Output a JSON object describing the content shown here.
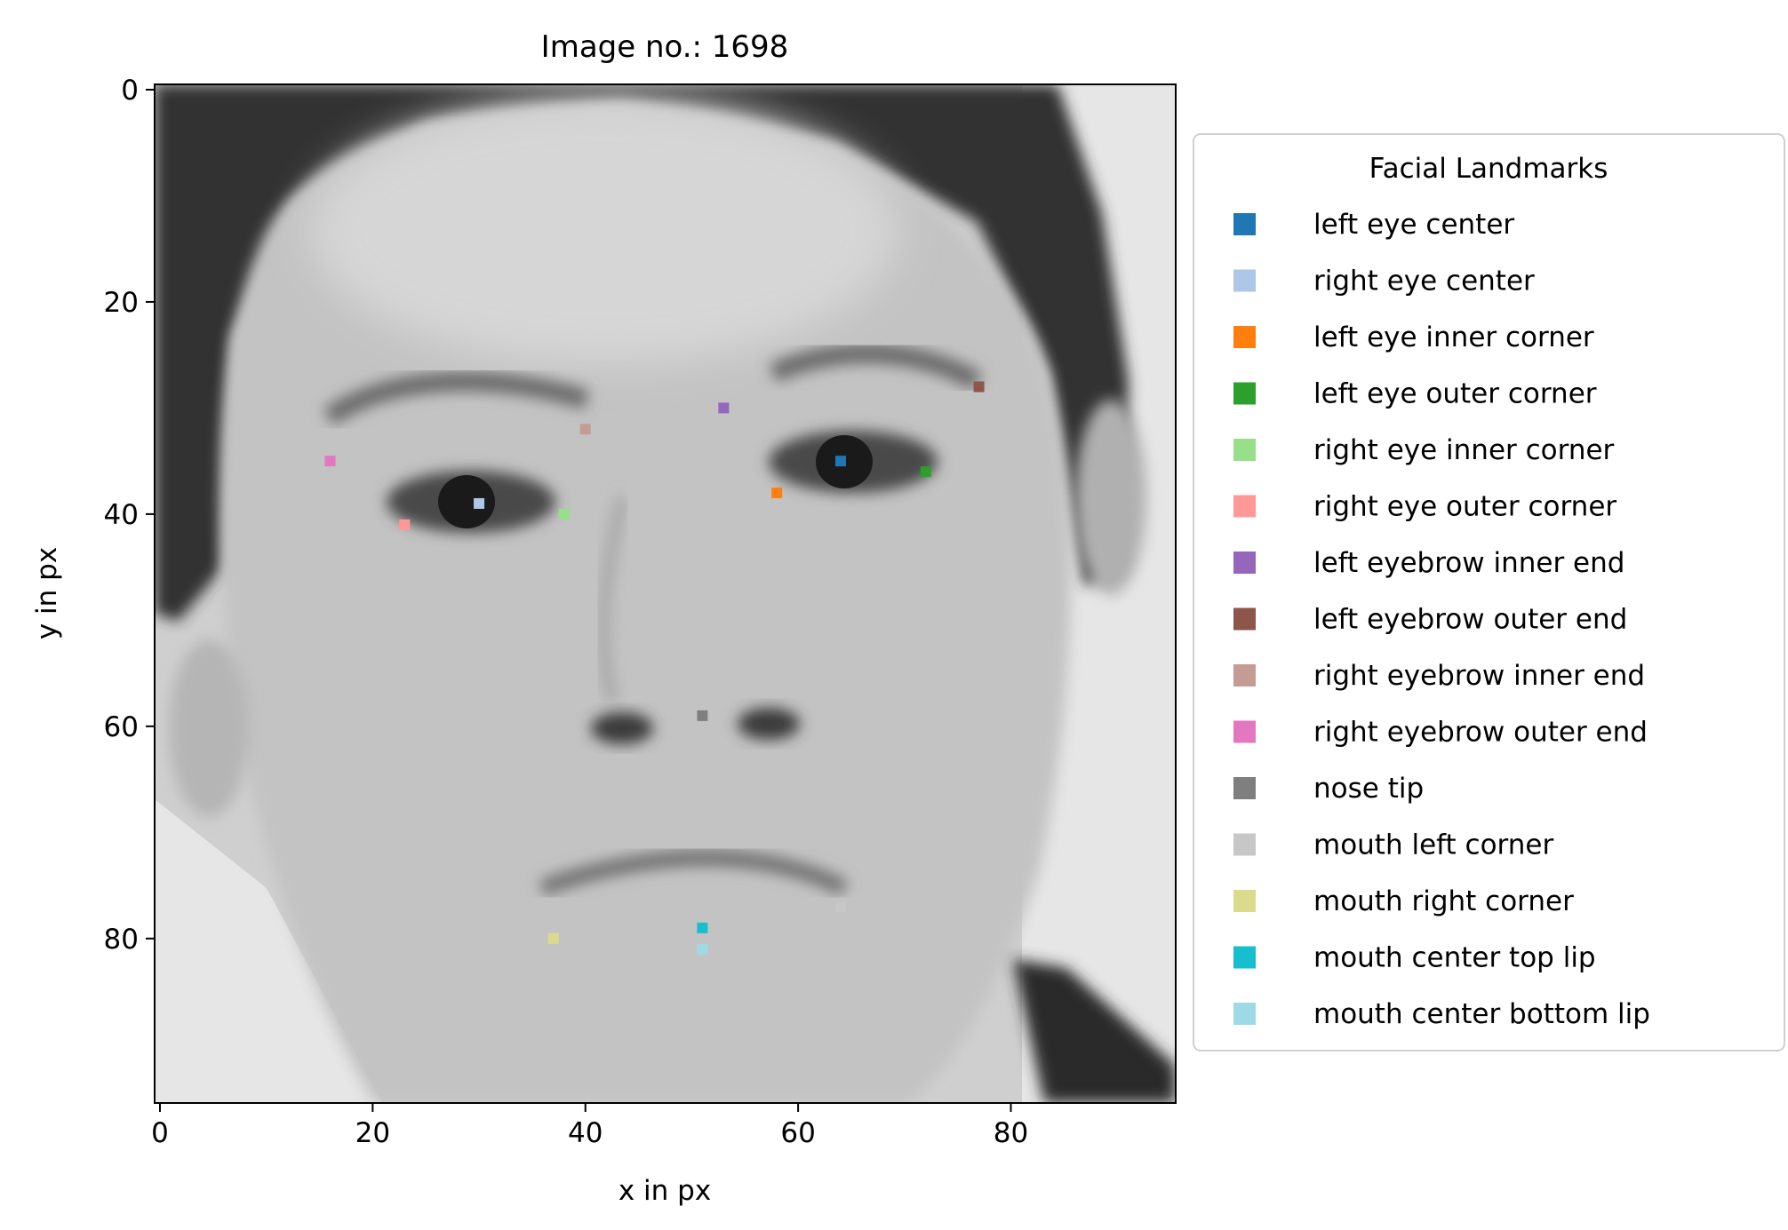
{
  "chart_data": {
    "type": "scatter",
    "title": "Image no.: 1698",
    "xlabel": "x in px",
    "ylabel": "y in px",
    "xlim": [
      -0.5,
      95.5
    ],
    "ylim": [
      95.5,
      -0.5
    ],
    "y_inverted": true,
    "background": "grayscale face photograph (96 x 96 px)",
    "xticks": [
      0,
      20,
      40,
      60,
      80
    ],
    "yticks": [
      0,
      20,
      40,
      60,
      80
    ],
    "xtick_labels": [
      "0",
      "20",
      "40",
      "60",
      "80"
    ],
    "ytick_labels": [
      "0",
      "20",
      "40",
      "60",
      "80"
    ],
    "grid": false,
    "legend": {
      "title": "Facial Landmarks",
      "placement": "outside-right"
    },
    "series": [
      {
        "name": "left eye center",
        "color": "#1f77b4",
        "x": 64,
        "y": 35
      },
      {
        "name": "right eye center",
        "color": "#aec7e8",
        "x": 30,
        "y": 39
      },
      {
        "name": "left eye inner corner",
        "color": "#ff7f0e",
        "x": 58,
        "y": 38
      },
      {
        "name": "left eye outer corner",
        "color": "#2ca02c",
        "x": 72,
        "y": 36
      },
      {
        "name": "right eye inner corner",
        "color": "#98df8a",
        "x": 38,
        "y": 40
      },
      {
        "name": "right eye outer corner",
        "color": "#ff9896",
        "x": 23,
        "y": 41
      },
      {
        "name": "left eyebrow inner end",
        "color": "#9467bd",
        "x": 53,
        "y": 30
      },
      {
        "name": "left eyebrow outer end",
        "color": "#8c564b",
        "x": 77,
        "y": 28
      },
      {
        "name": "right eyebrow inner end",
        "color": "#c49c94",
        "x": 40,
        "y": 32
      },
      {
        "name": "right eyebrow outer end",
        "color": "#e377c2",
        "x": 16,
        "y": 35
      },
      {
        "name": "nose tip",
        "color": "#7f7f7f",
        "x": 51,
        "y": 59
      },
      {
        "name": "mouth left corner",
        "color": "#c7c7c7",
        "x": 64,
        "y": 77
      },
      {
        "name": "mouth right corner",
        "color": "#dbdb8d",
        "x": 37,
        "y": 80
      },
      {
        "name": "mouth center top lip",
        "color": "#17becf",
        "x": 51,
        "y": 79
      },
      {
        "name": "mouth center bottom lip",
        "color": "#9edae5",
        "x": 51,
        "y": 81
      }
    ]
  }
}
